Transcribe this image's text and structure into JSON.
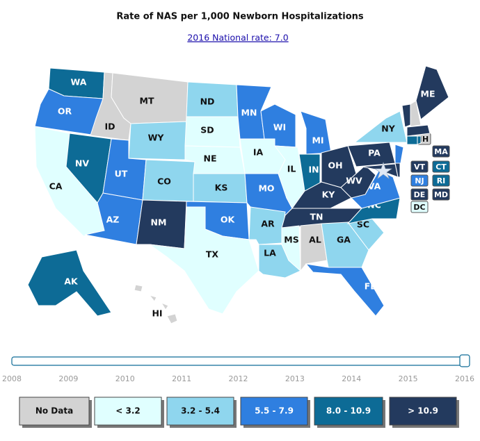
{
  "title": "Rate of NAS per 1,000 Newborn Hospitalizations",
  "national_rate_link": "2016 National rate: 7.0",
  "states": [
    {
      "abbr": "WA",
      "color": "#0d6b96"
    },
    {
      "abbr": "OR",
      "color": "#2f7fe0"
    },
    {
      "abbr": "CA",
      "color": "#e0ffff"
    },
    {
      "abbr": "NV",
      "color": "#0d6b96"
    },
    {
      "abbr": "ID",
      "color": "#d3d3d3"
    },
    {
      "abbr": "MT",
      "color": "#d3d3d3"
    },
    {
      "abbr": "WY",
      "color": "#8fd6ee"
    },
    {
      "abbr": "UT",
      "color": "#2f7fe0"
    },
    {
      "abbr": "AZ",
      "color": "#2f7fe0"
    },
    {
      "abbr": "CO",
      "color": "#8fd6ee"
    },
    {
      "abbr": "NM",
      "color": "#233a5e"
    },
    {
      "abbr": "ND",
      "color": "#8fd6ee"
    },
    {
      "abbr": "SD",
      "color": "#e0ffff"
    },
    {
      "abbr": "NE",
      "color": "#e0ffff"
    },
    {
      "abbr": "KS",
      "color": "#8fd6ee"
    },
    {
      "abbr": "OK",
      "color": "#2f7fe0"
    },
    {
      "abbr": "TX",
      "color": "#e0ffff"
    },
    {
      "abbr": "MN",
      "color": "#2f7fe0"
    },
    {
      "abbr": "IA",
      "color": "#e0ffff"
    },
    {
      "abbr": "MO",
      "color": "#2f7fe0"
    },
    {
      "abbr": "AR",
      "color": "#8fd6ee"
    },
    {
      "abbr": "LA",
      "color": "#8fd6ee"
    },
    {
      "abbr": "WI",
      "color": "#2f7fe0"
    },
    {
      "abbr": "IL",
      "color": "#e0ffff"
    },
    {
      "abbr": "MI",
      "color": "#2f7fe0"
    },
    {
      "abbr": "IN",
      "color": "#0d6b96"
    },
    {
      "abbr": "OH",
      "color": "#233a5e"
    },
    {
      "abbr": "KY",
      "color": "#233a5e"
    },
    {
      "abbr": "TN",
      "color": "#233a5e"
    },
    {
      "abbr": "MS",
      "color": "#e0ffff"
    },
    {
      "abbr": "AL",
      "color": "#d3d3d3"
    },
    {
      "abbr": "GA",
      "color": "#8fd6ee"
    },
    {
      "abbr": "FL",
      "color": "#2f7fe0"
    },
    {
      "abbr": "SC",
      "color": "#8fd6ee"
    },
    {
      "abbr": "NC",
      "color": "#0d6b96"
    },
    {
      "abbr": "VA",
      "color": "#2f7fe0"
    },
    {
      "abbr": "WV",
      "color": "#233a5e"
    },
    {
      "abbr": "PA",
      "color": "#233a5e"
    },
    {
      "abbr": "NY",
      "color": "#8fd6ee"
    },
    {
      "abbr": "ME",
      "color": "#233a5e"
    },
    {
      "abbr": "VT",
      "color": "#233a5e"
    },
    {
      "abbr": "NH",
      "color": "#d3d3d3"
    },
    {
      "abbr": "MA",
      "color": "#233a5e"
    },
    {
      "abbr": "CT",
      "color": "#0d6b96"
    },
    {
      "abbr": "RI",
      "color": "#0d6b96"
    },
    {
      "abbr": "NJ",
      "color": "#2f7fe0"
    },
    {
      "abbr": "DE",
      "color": "#233a5e"
    },
    {
      "abbr": "MD",
      "color": "#233a5e"
    },
    {
      "abbr": "DC",
      "color": "#e0ffff"
    },
    {
      "abbr": "AK",
      "color": "#0d6b96"
    },
    {
      "abbr": "HI",
      "color": "#d3d3d3"
    }
  ],
  "slider": {
    "years": [
      2008,
      2009,
      2010,
      2011,
      2012,
      2013,
      2014,
      2015,
      2016
    ],
    "value": 2016
  },
  "legend": [
    {
      "label": "No Data",
      "color": "#d3d3d3"
    },
    {
      "label": "< 3.2",
      "color": "#e0ffff"
    },
    {
      "label": "3.2 - 5.4",
      "color": "#8fd6ee"
    },
    {
      "label": "5.5 - 7.9",
      "color": "#2f7fe0"
    },
    {
      "label": "8.0 - 10.9",
      "color": "#0d6b96"
    },
    {
      "label": "> 10.9",
      "color": "#233a5e"
    }
  ]
}
